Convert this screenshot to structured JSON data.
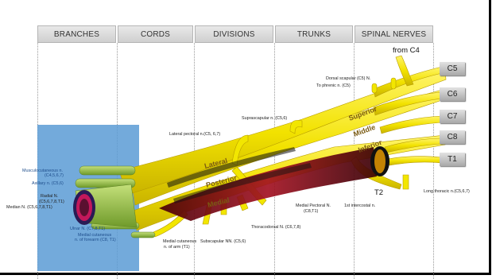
{
  "headers": [
    "BRANCHES",
    "CORDS",
    "DIVISIONS",
    "TRUNKS",
    "SPINAL NERVES"
  ],
  "roots": [
    "C5",
    "C6",
    "C7",
    "C8",
    "T1"
  ],
  "from_c4": "from C4",
  "t2": "T2",
  "nerve_labels": {
    "dorsal_scapular": "Dorsal scapular (C5) N.",
    "to_phrenic": "To phrenic n. (C5)",
    "suprascapular": "Suprascapular n. (C5,6)",
    "lateral_pectoral": "Lateral pectoral n.(C5, 6,7)",
    "musculocutaneous": "Musculocutaneous n.",
    "musculocutaneous_roots": "(C4,5,6,7)",
    "axillary": "Axillary n. (C5,6)",
    "radial": "Radial N.",
    "radial_roots": "(C5,6,7,8,T1)",
    "median": "Median N. (C5,6,7,8,T1)",
    "ulnar": "Ulnar N. (C7,8,T1)",
    "medial_cutaneous_forearm": "Medial cutaneous",
    "medial_cutaneous_forearm_2": "n. of forearm (C8, T1)",
    "medial_cutaneous_arm": "Medial cutaneous",
    "medial_cutaneous_arm_2": "n. of arm (T1)",
    "subscapular": "Subscapular NN. (C5,6)",
    "thoracodorsal": "Thoracodorsal N. (C6,7,8)",
    "medial_pectoral": "Medial Pectoral N.",
    "medial_pectoral_roots": "(C8,T1)",
    "first_intercostal": "1st intercostal n.",
    "long_thoracic": "Long thoracic n.(C5,6,7)"
  },
  "cord_labels": {
    "lateral": "Lateral",
    "posterior": "Posterior",
    "medial": "Medial"
  },
  "trunk_labels": {
    "superior": "Superior",
    "middle": "Middle",
    "inferior": "Inferior"
  },
  "colors": {
    "nerve": "#f2e600",
    "nerve_edge": "#b89d00",
    "artery": "#8b0f1c",
    "axilla_box": "#5b9bd5",
    "branch_green": "#8db83f"
  }
}
